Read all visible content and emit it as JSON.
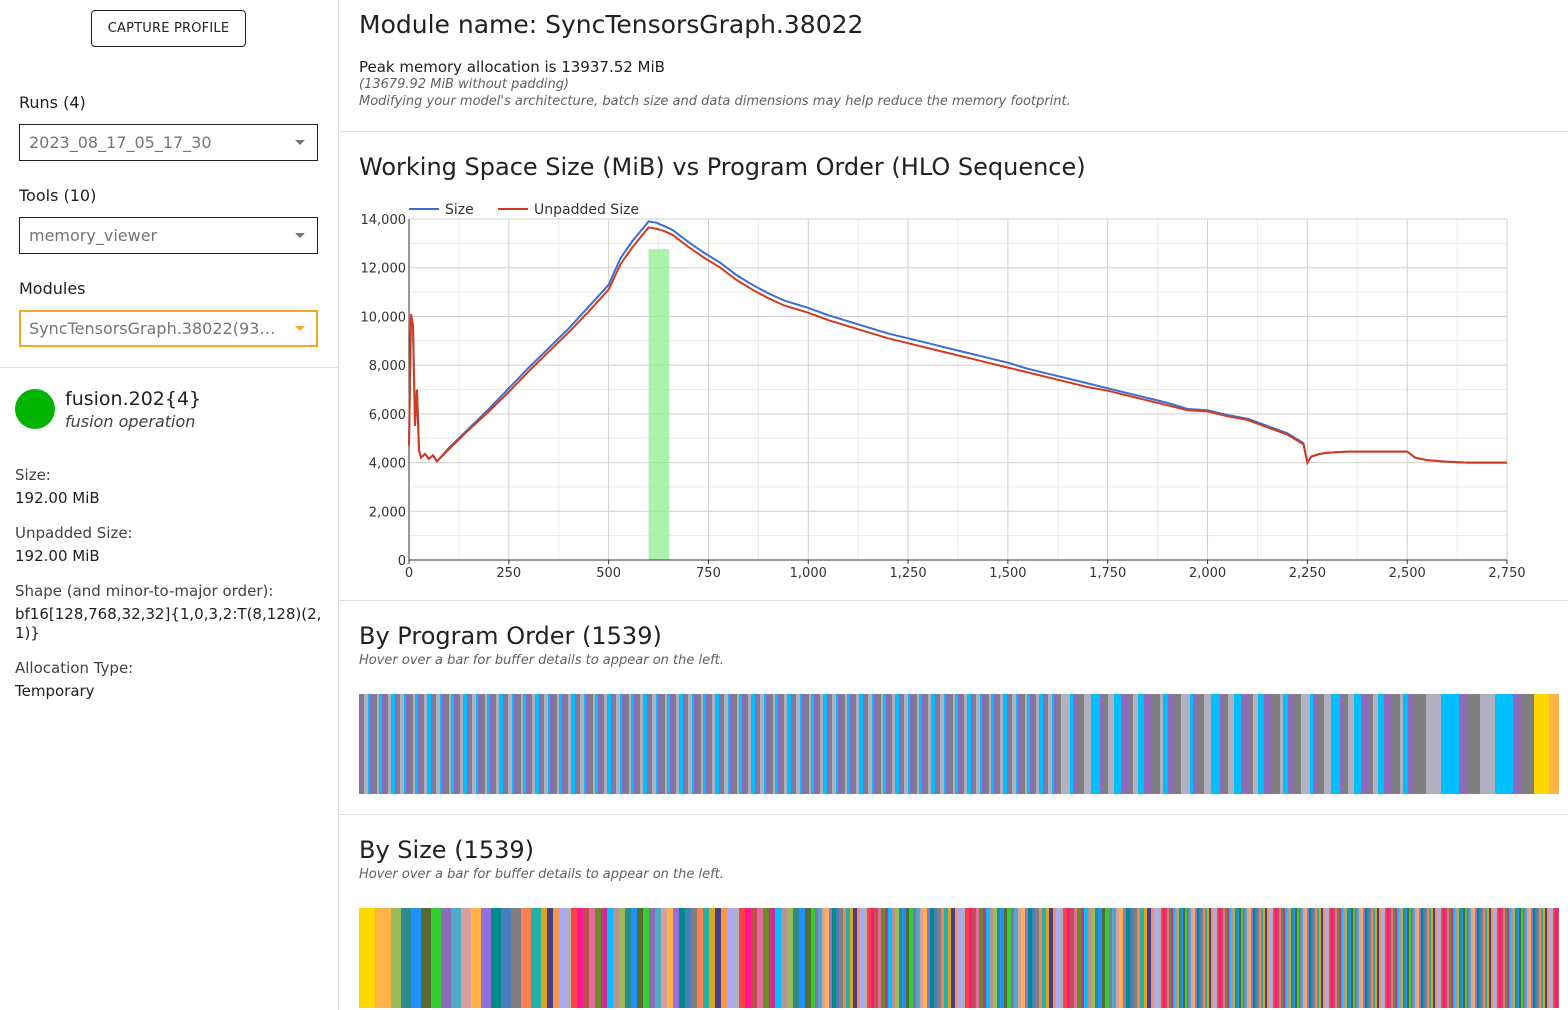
{
  "sidebar": {
    "capture_label": "CAPTURE PROFILE",
    "runs_label": "Runs (4)",
    "runs_value": "2023_08_17_05_17_30",
    "tools_label": "Tools (10)",
    "tools_value": "memory_viewer",
    "modules_label": "Modules",
    "modules_value": "SyncTensorsGraph.38022(930...",
    "buffer": {
      "color": "#00b400",
      "name": "fusion.202{4}",
      "op": "fusion operation",
      "size_label": "Size:",
      "size_value": "192.00 MiB",
      "unpadded_label": "Unpadded Size:",
      "unpadded_value": "192.00 MiB",
      "shape_label": "Shape (and minor-to-major order):",
      "shape_value": "bf16[128,768,32,32]{1,0,3,2:T(8,128)(2,1)}",
      "alloc_label": "Allocation Type:",
      "alloc_value": "Temporary"
    }
  },
  "main": {
    "module_title": "Module name: SyncTensorsGraph.38022",
    "peak_line": "Peak memory allocation is 13937.52 MiB",
    "peak_sub1": "(13679.92 MiB without padding)",
    "peak_sub2": "Modifying your model's architecture, batch size and data dimensions may help reduce the memory footprint.",
    "chart_title": "Working Space Size (MiB) vs Program Order (HLO Sequence)",
    "program_order_title": "By Program Order (1539)",
    "program_order_hint": "Hover over a bar for buffer details to appear on the left.",
    "by_size_title": "By Size (1539)",
    "by_size_hint": "Hover over a bar for buffer details to appear on the left."
  },
  "chart_data": {
    "type": "line",
    "title": "Working Space Size (MiB) vs Program Order (HLO Sequence)",
    "xlabel": "",
    "ylabel": "",
    "xlim": [
      0,
      2750
    ],
    "ylim": [
      0,
      14000
    ],
    "xticks": [
      0,
      250,
      500,
      750,
      1000,
      1250,
      1500,
      1750,
      2000,
      2250,
      2500,
      2750
    ],
    "yticks": [
      0,
      2000,
      4000,
      6000,
      8000,
      10000,
      12000,
      14000
    ],
    "grid": true,
    "legend_position": "top-left",
    "highlight_range": [
      600,
      652
    ],
    "highlight_color": "#90ee90",
    "series": [
      {
        "name": "Size",
        "color": "#3b6fd4",
        "x": [
          0,
          5,
          10,
          15,
          20,
          25,
          30,
          40,
          50,
          60,
          70,
          100,
          150,
          200,
          250,
          300,
          350,
          400,
          450,
          500,
          530,
          560,
          600,
          620,
          640,
          660,
          680,
          700,
          740,
          780,
          820,
          860,
          900,
          940,
          1000,
          1050,
          1100,
          1150,
          1200,
          1250,
          1300,
          1350,
          1400,
          1450,
          1500,
          1550,
          1600,
          1650,
          1700,
          1750,
          1800,
          1850,
          1900,
          1950,
          2000,
          2050,
          2100,
          2150,
          2200,
          2240,
          2250,
          2260,
          2280,
          2300,
          2350,
          2400,
          2450,
          2500,
          2520,
          2550,
          2600,
          2650,
          2700,
          2750
        ],
        "y": [
          4700,
          10100,
          9600,
          5500,
          7000,
          4500,
          4200,
          4350,
          4150,
          4300,
          4050,
          4600,
          5400,
          6200,
          7050,
          7900,
          8700,
          9500,
          10400,
          11300,
          12400,
          13100,
          13900,
          13850,
          13700,
          13550,
          13300,
          13050,
          12600,
          12200,
          11700,
          11300,
          10950,
          10650,
          10350,
          10050,
          9800,
          9550,
          9300,
          9100,
          8900,
          8700,
          8500,
          8300,
          8100,
          7850,
          7650,
          7450,
          7250,
          7050,
          6850,
          6650,
          6450,
          6200,
          6150,
          5950,
          5800,
          5500,
          5200,
          4800,
          4000,
          4250,
          4350,
          4400,
          4450,
          4450,
          4450,
          4450,
          4200,
          4100,
          4030,
          4000,
          4000,
          4000
        ]
      },
      {
        "name": "Unpadded Size",
        "color": "#d23b1e",
        "x": [
          0,
          5,
          10,
          15,
          20,
          25,
          30,
          40,
          50,
          60,
          70,
          100,
          150,
          200,
          250,
          300,
          350,
          400,
          450,
          500,
          530,
          560,
          600,
          620,
          640,
          660,
          680,
          700,
          740,
          780,
          820,
          860,
          900,
          940,
          1000,
          1050,
          1100,
          1150,
          1200,
          1250,
          1300,
          1350,
          1400,
          1450,
          1500,
          1550,
          1600,
          1650,
          1700,
          1750,
          1800,
          1850,
          1900,
          1950,
          2000,
          2050,
          2100,
          2150,
          2200,
          2240,
          2250,
          2260,
          2280,
          2300,
          2350,
          2400,
          2450,
          2500,
          2520,
          2550,
          2600,
          2650,
          2700,
          2750
        ],
        "y": [
          4700,
          10100,
          9600,
          5500,
          7000,
          4500,
          4200,
          4350,
          4150,
          4300,
          4050,
          4550,
          5350,
          6100,
          6900,
          7750,
          8550,
          9350,
          10200,
          11100,
          12150,
          12850,
          13650,
          13600,
          13500,
          13350,
          13100,
          12850,
          12400,
          12000,
          11500,
          11100,
          10750,
          10450,
          10150,
          9850,
          9600,
          9350,
          9100,
          8900,
          8700,
          8500,
          8300,
          8100,
          7900,
          7700,
          7500,
          7300,
          7100,
          6950,
          6750,
          6550,
          6350,
          6150,
          6100,
          5900,
          5750,
          5450,
          5150,
          4750,
          4000,
          4250,
          4350,
          4400,
          4450,
          4450,
          4450,
          4450,
          4200,
          4100,
          4030,
          4000,
          4000,
          4000
        ]
      }
    ]
  }
}
